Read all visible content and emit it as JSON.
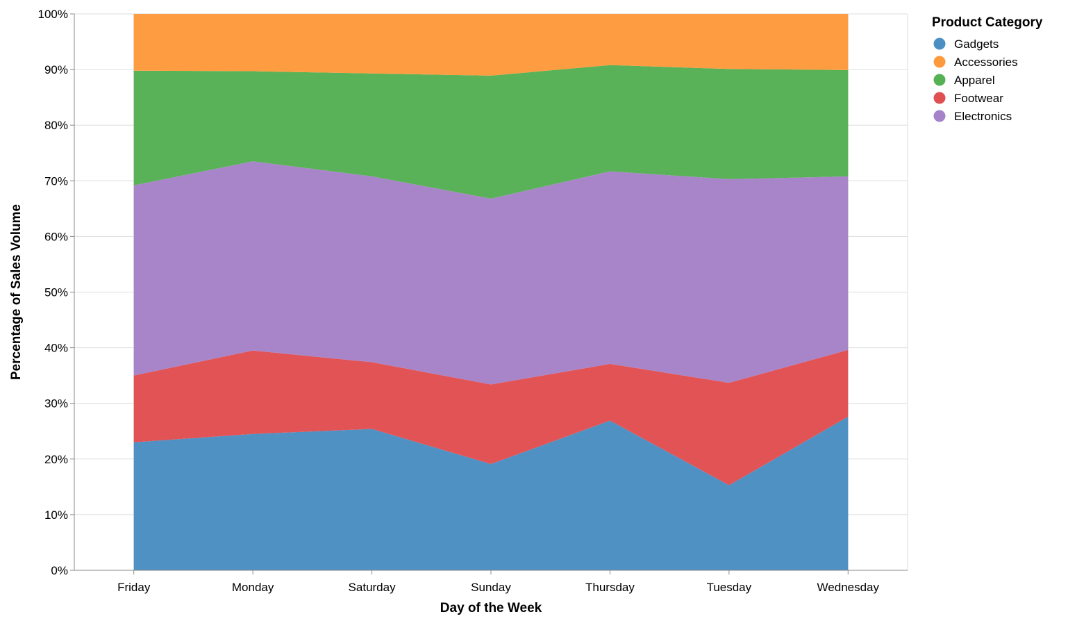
{
  "chart_data": {
    "type": "area",
    "stacked": "normalize",
    "xlabel": "Day of the Week",
    "ylabel": "Percentage of Sales Volume",
    "categories": [
      "Friday",
      "Monday",
      "Saturday",
      "Sunday",
      "Thursday",
      "Tuesday",
      "Wednesday"
    ],
    "ylim": [
      0,
      100
    ],
    "y_ticks": [
      "0%",
      "10%",
      "20%",
      "30%",
      "40%",
      "50%",
      "60%",
      "70%",
      "80%",
      "90%",
      "100%"
    ],
    "grid": true,
    "legend": {
      "title": "Product Category",
      "placement": "top-right"
    },
    "series": [
      {
        "name": "Gadgets",
        "color": "#4c8fc3",
        "values": [
          23.0,
          24.5,
          25.4,
          19.1,
          26.9,
          15.3,
          27.6
        ]
      },
      {
        "name": "Footwear",
        "color": "#e05052",
        "values": [
          12.0,
          15.0,
          12.0,
          14.3,
          10.2,
          18.4,
          12.0
        ]
      },
      {
        "name": "Electronics",
        "color": "#a683c8",
        "values": [
          34.2,
          34.0,
          33.4,
          33.4,
          34.6,
          36.6,
          31.2
        ]
      },
      {
        "name": "Apparel",
        "color": "#56b054",
        "values": [
          20.6,
          16.2,
          18.5,
          22.1,
          19.1,
          19.8,
          19.1
        ]
      },
      {
        "name": "Accessories",
        "color": "#fe9a3e",
        "values": [
          10.2,
          10.3,
          10.7,
          11.1,
          9.2,
          9.9,
          10.1
        ]
      }
    ],
    "legend_order": [
      "Gadgets",
      "Accessories",
      "Apparel",
      "Footwear",
      "Electronics"
    ]
  }
}
